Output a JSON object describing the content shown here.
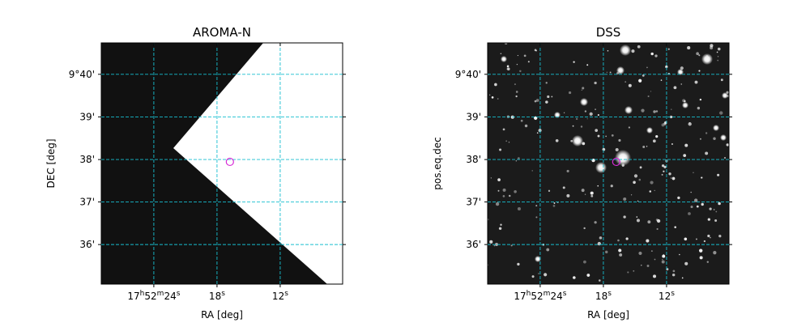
{
  "chart_data": [
    {
      "type": "image",
      "title": "AROMA-N",
      "xlabel": "RA [deg]",
      "ylabel": "DEC [deg]",
      "xlim": [
        268.1208,
        268.0253
      ],
      "ylim": [
        9.5845,
        9.679
      ],
      "xticks": [
        {
          "value": 268.1,
          "label": "17h52m24s"
        },
        {
          "value": 268.075,
          "label": "18s"
        },
        {
          "value": 268.05,
          "label": "12s"
        }
      ],
      "yticks": [
        {
          "value": 9.6,
          "label": "36'"
        },
        {
          "value": 9.6167,
          "label": "37'"
        },
        {
          "value": 9.6333,
          "label": "38'"
        },
        {
          "value": 9.65,
          "label": "39'"
        },
        {
          "value": 9.6667,
          "label": "9°40'"
        }
      ],
      "grid": true,
      "grid_color": "#17becf",
      "marker": {
        "x": 268.0699,
        "y": 9.6324,
        "color": "#d62ad6"
      }
    },
    {
      "type": "image",
      "title": "DSS",
      "xlabel": "RA [deg]",
      "ylabel": "pos.eq.dec",
      "xlim": [
        268.1208,
        268.0253
      ],
      "ylim": [
        9.5845,
        9.679
      ],
      "xticks": [
        {
          "value": 268.1,
          "label": "17h52m24s"
        },
        {
          "value": 268.075,
          "label": "18s"
        },
        {
          "value": 268.05,
          "label": "12s"
        }
      ],
      "yticks": [
        {
          "value": 9.6,
          "label": "36'"
        },
        {
          "value": 9.6167,
          "label": "37'"
        },
        {
          "value": 9.6333,
          "label": "38'"
        },
        {
          "value": 9.65,
          "label": "39'"
        },
        {
          "value": 9.6667,
          "label": "9°40'"
        }
      ],
      "grid": true,
      "grid_color": "#17becf",
      "marker": {
        "x": 268.0699,
        "y": 9.6324,
        "color": "#d62ad6"
      }
    }
  ]
}
